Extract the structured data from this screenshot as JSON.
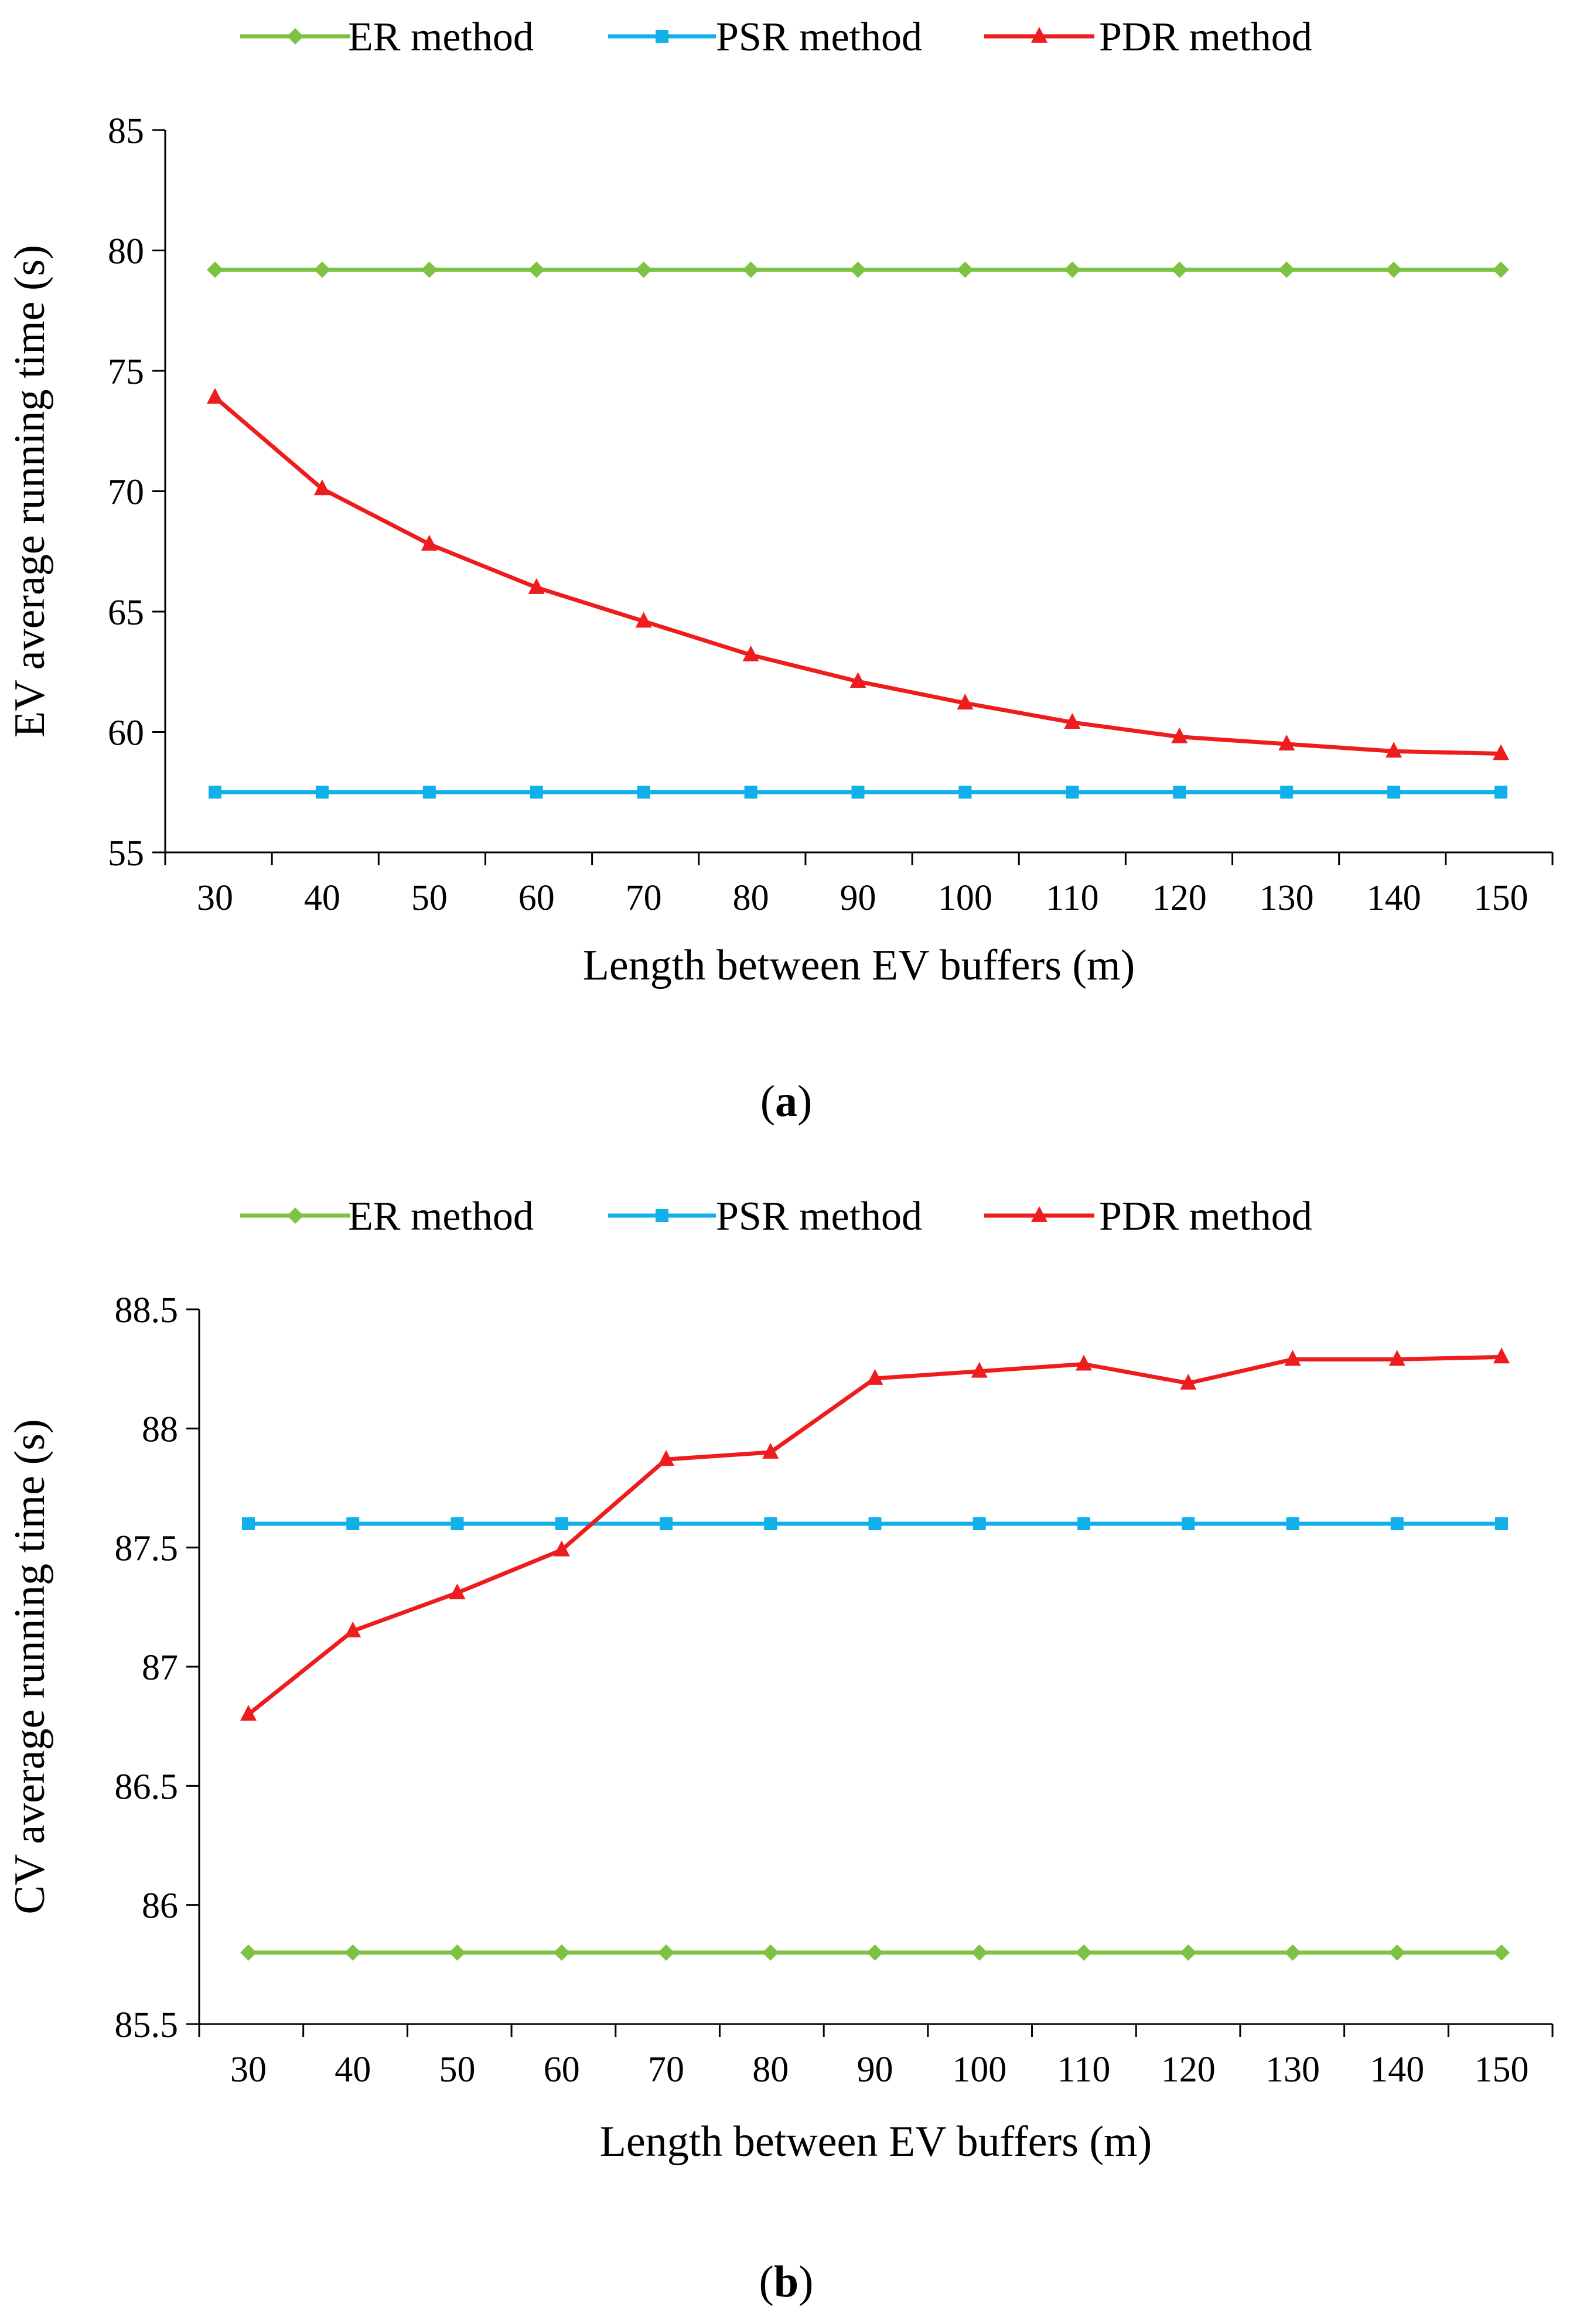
{
  "chart_data": [
    {
      "type": "line",
      "panel_label": "a",
      "title": "",
      "xlabel": "Length between EV buffers (m)",
      "ylabel": "EV average running time (s)",
      "categories": [
        30,
        40,
        50,
        60,
        70,
        80,
        90,
        100,
        110,
        120,
        130,
        140,
        150
      ],
      "ylim": [
        55,
        85
      ],
      "yticks": [
        55,
        60,
        65,
        70,
        75,
        80,
        85
      ],
      "ytick_labels": [
        "55",
        "60",
        "65",
        "70",
        "75",
        "80",
        "85"
      ],
      "legend_position": "top",
      "series": [
        {
          "name": "ER method",
          "color": "#7DC242",
          "marker": "diamond",
          "values": [
            79.2,
            79.2,
            79.2,
            79.2,
            79.2,
            79.2,
            79.2,
            79.2,
            79.2,
            79.2,
            79.2,
            79.2,
            79.2
          ]
        },
        {
          "name": "PSR method",
          "color": "#12B0EA",
          "marker": "square",
          "values": [
            57.5,
            57.5,
            57.5,
            57.5,
            57.5,
            57.5,
            57.5,
            57.5,
            57.5,
            57.5,
            57.5,
            57.5,
            57.5
          ]
        },
        {
          "name": "PDR method",
          "color": "#EE1C1C",
          "marker": "triangle",
          "values": [
            73.9,
            70.1,
            67.8,
            66.0,
            64.6,
            63.2,
            62.1,
            61.2,
            60.4,
            59.8,
            59.5,
            59.2,
            59.1
          ]
        }
      ]
    },
    {
      "type": "line",
      "panel_label": "b",
      "title": "",
      "xlabel": "Length between EV buffers (m)",
      "ylabel": "CV average running time (s)",
      "categories": [
        30,
        40,
        50,
        60,
        70,
        80,
        90,
        100,
        110,
        120,
        130,
        140,
        150
      ],
      "ylim": [
        85.5,
        88.5
      ],
      "yticks": [
        85.5,
        86,
        86.5,
        87,
        87.5,
        88,
        88.5
      ],
      "ytick_labels": [
        "85.5",
        "86",
        "86.5",
        "87",
        "87.5",
        "88",
        "88.5"
      ],
      "legend_position": "top",
      "series": [
        {
          "name": "ER method",
          "color": "#7DC242",
          "marker": "diamond",
          "values": [
            85.8,
            85.8,
            85.8,
            85.8,
            85.8,
            85.8,
            85.8,
            85.8,
            85.8,
            85.8,
            85.8,
            85.8,
            85.8
          ]
        },
        {
          "name": "PSR method",
          "color": "#12B0EA",
          "marker": "square",
          "values": [
            87.6,
            87.6,
            87.6,
            87.6,
            87.6,
            87.6,
            87.6,
            87.6,
            87.6,
            87.6,
            87.6,
            87.6,
            87.6
          ]
        },
        {
          "name": "PDR method",
          "color": "#EE1C1C",
          "marker": "triangle",
          "values": [
            86.8,
            87.15,
            87.31,
            87.49,
            87.87,
            87.9,
            88.21,
            88.24,
            88.27,
            88.19,
            88.29,
            88.29,
            88.3
          ]
        }
      ]
    }
  ]
}
